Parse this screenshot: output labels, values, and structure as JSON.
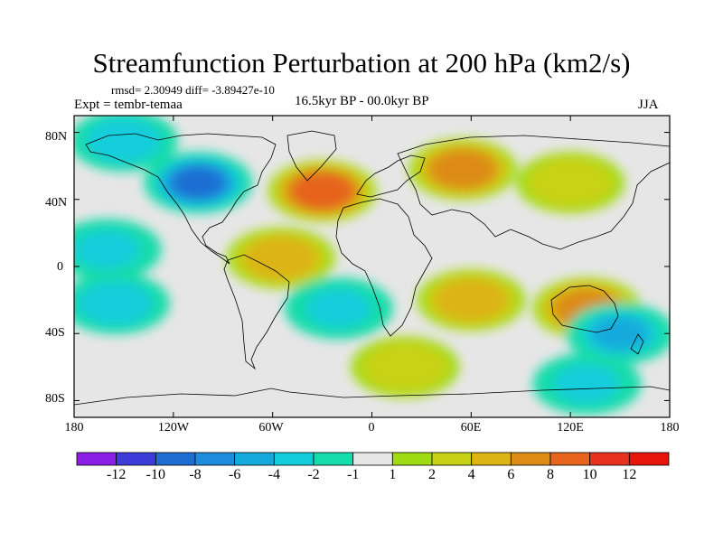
{
  "title": "Streamfunction Perturbation at 200 hPa (km2/s)",
  "stats": "rmsd= 2.30949  diff= -3.89427e-10",
  "experiment": "Expt = tembr-temaa",
  "period": "16.5kyr BP - 00.0kyr BP",
  "season": "JJA",
  "y_axis_labels": [
    "80N",
    "40N",
    "0",
    "40S",
    "80S"
  ],
  "x_axis_labels": [
    "180",
    "120W",
    "60W",
    "0",
    "60E",
    "120E",
    "180"
  ],
  "colorbar": {
    "labels": [
      "-12",
      "-10",
      "-8",
      "-6",
      "-4",
      "-2",
      "-1",
      "1",
      "2",
      "4",
      "6",
      "8",
      "10",
      "12"
    ],
    "colors": [
      "#8a1fe6",
      "#3c3cd8",
      "#1e6ed2",
      "#1e8cdc",
      "#14aadc",
      "#14cddc",
      "#14dcaa",
      "#e6e6e6",
      "#a0dc14",
      "#c8d214",
      "#dcb414",
      "#dc8c14",
      "#e6641e",
      "#e6321e",
      "#e6140a"
    ]
  },
  "chart_data": {
    "type": "map",
    "variable": "Streamfunction Perturbation at 200 hPa (km2/s)",
    "projection": "cylindrical equidistant, 180W-180E, 90S-90N",
    "levels": [
      -12,
      -10,
      -8,
      -6,
      -4,
      -2,
      -1,
      1,
      2,
      4,
      6,
      8,
      10,
      12
    ],
    "features": [
      {
        "region": "North America / N Pacific",
        "lon": -105,
        "lat": 50,
        "value": -9,
        "sign": "negative"
      },
      {
        "region": "North Pacific",
        "lon": -150,
        "lat": 75,
        "value": -4,
        "sign": "negative"
      },
      {
        "region": "North Atlantic",
        "lon": -30,
        "lat": 45,
        "value": 9,
        "sign": "positive"
      },
      {
        "region": "Eurasia",
        "lon": 55,
        "lat": 58,
        "value": 7,
        "sign": "positive"
      },
      {
        "region": "East Asia",
        "lon": 120,
        "lat": 50,
        "value": 3,
        "sign": "positive"
      },
      {
        "region": "Eastern Pacific tropics",
        "lon": -160,
        "lat": 10,
        "value": -3,
        "sign": "negative"
      },
      {
        "region": "South America",
        "lon": -55,
        "lat": 5,
        "value": 4,
        "sign": "positive"
      },
      {
        "region": "South Pacific",
        "lon": -155,
        "lat": -22,
        "value": -4,
        "sign": "negative"
      },
      {
        "region": "South Atlantic",
        "lon": -20,
        "lat": -25,
        "value": -3,
        "sign": "negative"
      },
      {
        "region": "Indian Ocean",
        "lon": 60,
        "lat": -20,
        "value": 4,
        "sign": "positive"
      },
      {
        "region": "Australia",
        "lon": 130,
        "lat": -25,
        "value": 6,
        "sign": "positive"
      },
      {
        "region": "SW Pacific",
        "lon": 150,
        "lat": -40,
        "value": -5,
        "sign": "negative"
      },
      {
        "region": "Southern Ocean",
        "lon": 20,
        "lat": -60,
        "value": 3,
        "sign": "positive"
      },
      {
        "region": "Antarctica margin",
        "lon": 130,
        "lat": -70,
        "value": -3,
        "sign": "negative"
      }
    ]
  }
}
